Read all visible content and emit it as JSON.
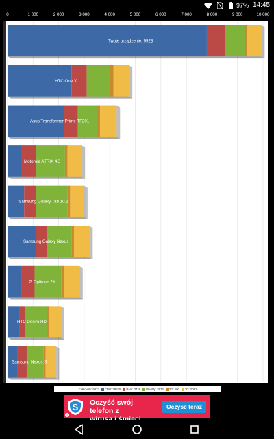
{
  "status_bar": {
    "battery_percent": "97%",
    "time": "14:45",
    "icons": [
      "wifi-icon",
      "no-sim-icon",
      "battery-icon"
    ]
  },
  "chart_data": {
    "type": "bar",
    "orientation": "horizontal",
    "stacked": true,
    "x_ticks": [
      "0",
      "1 000",
      "2 000",
      "3 000",
      "4 000",
      "5 000",
      "6 000",
      "7 000",
      "8 000",
      "9 000",
      "10 000"
    ],
    "xlim": [
      0,
      10000
    ],
    "categories": [
      "Twoje urządzenie: 9923",
      "HTC One X",
      "Asus Transformer Prime TF201",
      "Motorola ATRIX 4G",
      "Samsung Galaxy Tab 10.1",
      "Samsung Galaxy Nexus",
      "LG Optimus 2X",
      "HTC Desire HD",
      "Samsung Nexus S"
    ],
    "series": [
      {
        "name": "CPU",
        "color": "#3d6aa6",
        "values": [
          7800,
          2500,
          2200,
          550,
          650,
          1100,
          560,
          480,
          400
        ]
      },
      {
        "name": "Pam",
        "color": "#bb4a47",
        "values": [
          700,
          600,
          550,
          550,
          450,
          450,
          500,
          200,
          350
        ]
      },
      {
        "name": "We/Wy",
        "color": "#7fb33a",
        "values": [
          800,
          900,
          750,
          1150,
          1250,
          950,
          1050,
          850,
          650
        ]
      },
      {
        "name": "2D",
        "color": "#c98a2e",
        "values": [
          80,
          150,
          120,
          100,
          100,
          100,
          100,
          100,
          90
        ]
      },
      {
        "name": "3D",
        "color": "#f1bc45",
        "values": [
          550,
          600,
          650,
          550,
          550,
          600,
          600,
          460,
          400
        ]
      }
    ],
    "legend": {
      "position": "bottom",
      "items": [
        "Całkowity: 9923",
        "CPU: 39675",
        "Pam: 3428",
        "We/Wy: 3932",
        "2D: 500",
        "3D: 2081"
      ]
    },
    "grid": true
  },
  "ad": {
    "text_line1": "Oczyść swój telefon z",
    "text_line2": "wirusa i śmieci.",
    "button_label": "Oczyść teraz",
    "info_icon": "info-icon"
  },
  "nav_bar": {
    "icons": [
      "back-icon",
      "home-icon",
      "recents-icon"
    ]
  }
}
